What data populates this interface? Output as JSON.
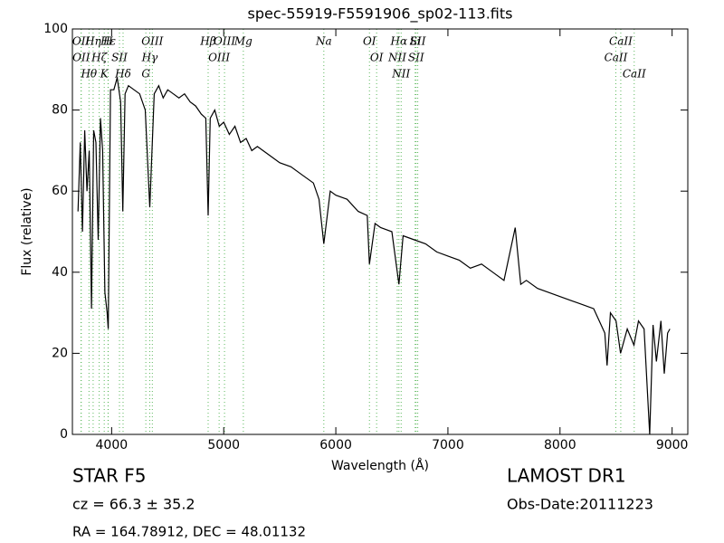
{
  "chart_data": {
    "type": "line",
    "title": "spec-55919-F5591906_sp02-113.fits",
    "x_label": "Wavelength (Å)",
    "y_label": "Flux (relative)",
    "xlim": [
      3650,
      9140
    ],
    "ylim": [
      0,
      100
    ],
    "xticks": [
      4000,
      5000,
      6000,
      7000,
      8000,
      9000
    ],
    "yticks": [
      0,
      20,
      40,
      60,
      80,
      100
    ],
    "color": "#000000",
    "x": [
      3700,
      3720,
      3740,
      3760,
      3780,
      3800,
      3820,
      3840,
      3860,
      3880,
      3900,
      3920,
      3940,
      3960,
      3970,
      3990,
      4020,
      4050,
      4080,
      4100,
      4120,
      4150,
      4200,
      4250,
      4300,
      4340,
      4380,
      4420,
      4460,
      4500,
      4550,
      4600,
      4650,
      4700,
      4750,
      4800,
      4840,
      4861,
      4880,
      4920,
      4960,
      5000,
      5050,
      5100,
      5150,
      5200,
      5250,
      5300,
      5400,
      5500,
      5600,
      5700,
      5800,
      5850,
      5893,
      5950,
      6000,
      6100,
      6200,
      6280,
      6300,
      6350,
      6400,
      6500,
      6563,
      6600,
      6700,
      6800,
      6900,
      7000,
      7100,
      7200,
      7300,
      7400,
      7500,
      7600,
      7650,
      7700,
      7800,
      7900,
      8000,
      8100,
      8200,
      8300,
      8400,
      8420,
      8450,
      8500,
      8540,
      8600,
      8660,
      8700,
      8750,
      8800,
      8830,
      8860,
      8900,
      8930,
      8960,
      8980
    ],
    "values": [
      55,
      72,
      50,
      75,
      60,
      70,
      31,
      75,
      72,
      48,
      78,
      70,
      35,
      30,
      26,
      85,
      85,
      88,
      82,
      55,
      84,
      86,
      85,
      84,
      80,
      56,
      84,
      86,
      83,
      85,
      84,
      83,
      84,
      82,
      81,
      79,
      78,
      54,
      78,
      80,
      76,
      77,
      74,
      76,
      72,
      73,
      70,
      71,
      69,
      67,
      66,
      64,
      62,
      58,
      47,
      60,
      59,
      58,
      55,
      54,
      42,
      52,
      51,
      50,
      37,
      49,
      48,
      47,
      45,
      44,
      43,
      41,
      42,
      40,
      38,
      51,
      37,
      38,
      36,
      35,
      34,
      33,
      32,
      31,
      25,
      17,
      30,
      28,
      20,
      26,
      22,
      28,
      26,
      0,
      27,
      18,
      28,
      15,
      25,
      26
    ],
    "line_style": "dotted",
    "line_color": "#5cb85c",
    "annotations": [
      {
        "x": 3727,
        "label": "OII"
      },
      {
        "x": 3729,
        "label": "OII"
      },
      {
        "x": 3798,
        "label": "Hθ"
      },
      {
        "x": 3835,
        "label": "Hη"
      },
      {
        "x": 3889,
        "label": "Hζ"
      },
      {
        "x": 3934,
        "label": "K"
      },
      {
        "x": 3968,
        "label": "H"
      },
      {
        "x": 3970,
        "label": "Hε"
      },
      {
        "x": 4070,
        "label": "SII"
      },
      {
        "x": 4102,
        "label": "Hδ"
      },
      {
        "x": 4363,
        "label": "OIII"
      },
      {
        "x": 4340,
        "label": "Hγ"
      },
      {
        "x": 4305,
        "label": "G"
      },
      {
        "x": 5007,
        "label": "OIII"
      },
      {
        "x": 4959,
        "label": "OIII"
      },
      {
        "x": 4861,
        "label": "Hβ"
      },
      {
        "x": 5175,
        "label": "Mg"
      },
      {
        "x": 5893,
        "label": "Na"
      },
      {
        "x": 6300,
        "label": "OI"
      },
      {
        "x": 6364,
        "label": "OI"
      },
      {
        "x": 6563,
        "label": "Hα"
      },
      {
        "x": 6548,
        "label": "NII"
      },
      {
        "x": 6583,
        "label": "NII"
      },
      {
        "x": 6716,
        "label": "SII"
      },
      {
        "x": 6708,
        "label": "Li"
      },
      {
        "x": 6731,
        "label": "SII"
      },
      {
        "x": 8542,
        "label": "CaII"
      },
      {
        "x": 8498,
        "label": "CaII"
      },
      {
        "x": 8662,
        "label": "CaII"
      }
    ]
  },
  "info": {
    "class": "STAR   F5",
    "cz": "cz = 66.3  ± 35.2",
    "coords": "RA = 164.78912, DEC = 48.01132",
    "survey": "LAMOST DR1",
    "date": "Obs-Date:20111223"
  }
}
